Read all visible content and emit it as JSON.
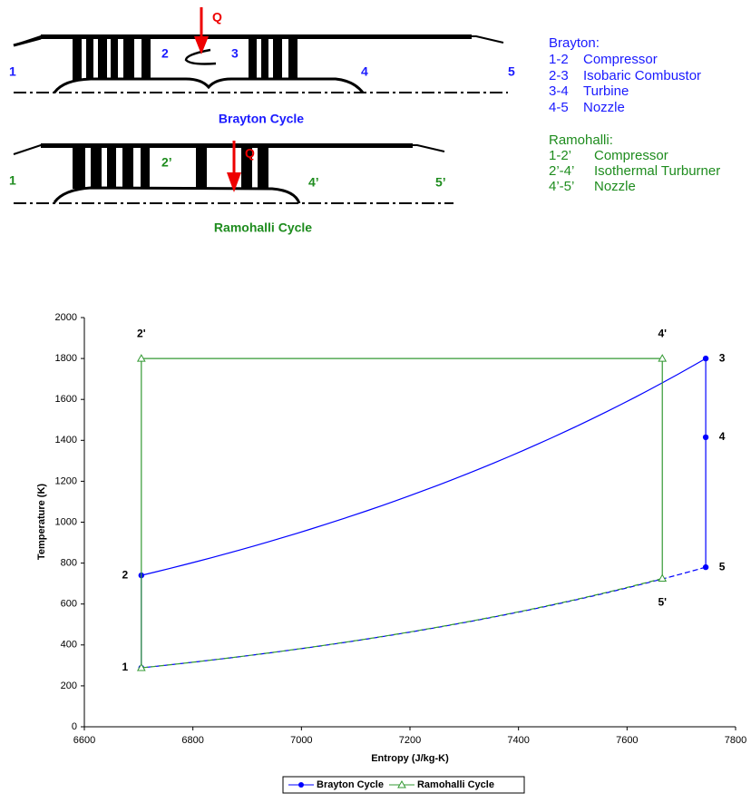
{
  "diagram": {
    "brayton": {
      "q": "Q",
      "stations": [
        "1",
        "2",
        "3",
        "4",
        "5"
      ],
      "caption": "Brayton Cycle"
    },
    "ramohalli": {
      "q": "Q",
      "stations": [
        "1",
        "2’",
        "4’",
        "5’"
      ],
      "caption": "Ramohalli Cycle"
    },
    "legend": {
      "brayton_title": "Brayton:",
      "brayton_items": [
        [
          "1-2",
          "Compressor"
        ],
        [
          "2-3",
          "Isobaric Combustor"
        ],
        [
          "3-4",
          "Turbine"
        ],
        [
          "4-5",
          "Nozzle"
        ]
      ],
      "ramohalli_title": "Ramohalli:",
      "ramohalli_items": [
        [
          "1-2’",
          "Compressor"
        ],
        [
          "2’-4’",
          "Isothermal Turburner"
        ],
        [
          "4’-5’",
          "Nozzle"
        ]
      ]
    }
  },
  "chart_data": {
    "type": "line",
    "x_label": "Entropy (J/kg-K)",
    "y_label": "Temperature (K)",
    "xlim": [
      6600,
      7800
    ],
    "xticks": [
      6600,
      6800,
      7000,
      7200,
      7400,
      7600,
      7800
    ],
    "ylim": [
      0,
      2000
    ],
    "yticks": [
      0,
      200,
      400,
      600,
      800,
      1000,
      1200,
      1400,
      1600,
      1800,
      2000
    ],
    "series": [
      {
        "name": "Brayton Cycle",
        "color": "#0000ff",
        "marker": "circle",
        "x": [
          6705,
          6705,
          7745,
          7745,
          7745
        ],
        "values": [
          288,
          740,
          1800,
          1415,
          780
        ],
        "point_labels": [
          "1",
          "2",
          "3",
          "4",
          "5"
        ]
      },
      {
        "name": "Ramohalli Cycle",
        "color": "#339933",
        "marker": "triangle",
        "x": [
          6705,
          6705,
          7665,
          7665
        ],
        "values": [
          288,
          1800,
          1800,
          725
        ],
        "point_labels": [
          null,
          "2'",
          "4'",
          "5'"
        ]
      }
    ]
  }
}
